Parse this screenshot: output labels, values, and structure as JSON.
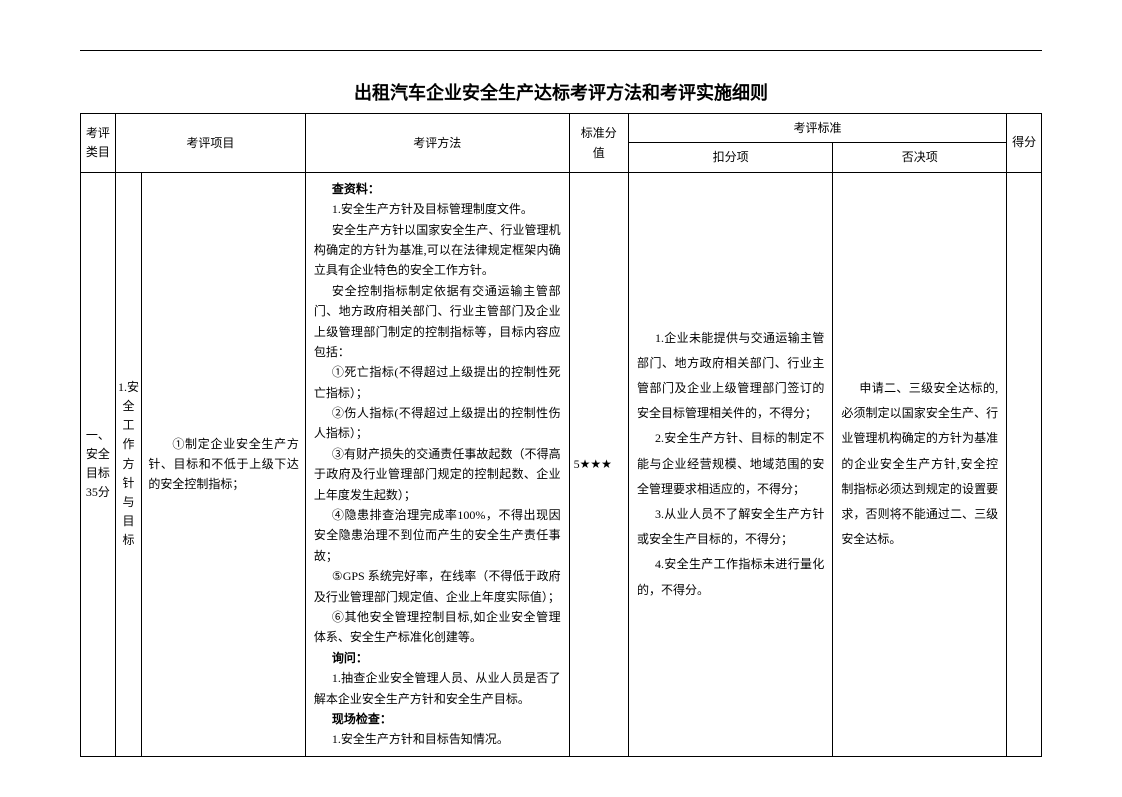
{
  "title": "出租汽车企业安全生产达标考评方法和考评实施细则",
  "headers": {
    "category": "考评类目",
    "project": "考评项目",
    "method": "考评方法",
    "std_score": "标准分值",
    "criteria": "考评标准",
    "deduct": "扣分项",
    "veto": "否决项",
    "points": "得分"
  },
  "row": {
    "category": "一、安全目标35分",
    "subproject": "1.安全工作方针与目标",
    "item": "①制定企业安全生产方针、目标和不低于上级下达的安全控制指标；",
    "method": {
      "h1": "查资料：",
      "p1": "1.安全生产方针及目标管理制度文件。",
      "p2": "安全生产方针以国家安全生产、行业管理机构确定的方针为基准,可以在法律规定框架内确立具有企业特色的安全工作方针。",
      "p3": "安全控制指标制定依据有交通运输主管部门、地方政府相关部门、行业主管部门及企业上级管理部门制定的控制指标等，目标内容应包括：",
      "p4": "①死亡指标(不得超过上级提出的控制性死亡指标）；",
      "p5": "②伤人指标(不得超过上级提出的控制性伤人指标）；",
      "p6": "③有财产损失的交通责任事故起数（不得高于政府及行业管理部门规定的控制起数、企业上年度发生起数）；",
      "p7": "④隐患排查治理完成率100%，不得出现因安全隐患治理不到位而产生的安全生产责任事故；",
      "p8": "⑤GPS 系统完好率，在线率（不得低于政府及行业管理部门规定值、企业上年度实际值）；",
      "p9": "⑥其他安全管理控制目标,如企业安全管理体系、安全生产标准化创建等。",
      "h2": "询问：",
      "p10": "1.抽查企业安全管理人员、从业人员是否了解本企业安全生产方针和安全生产目标。",
      "h3": "现场检查：",
      "p11": "1.安全生产方针和目标告知情况。"
    },
    "score": "5★★★",
    "deduct": {
      "p1": "1.企业未能提供与交通运输主管部门、地方政府相关部门、行业主管部门及企业上级管理部门签订的安全目标管理相关件的，不得分；",
      "p2": "2.安全生产方针、目标的制定不能与企业经营规模、地域范围的安全管理要求相适应的，不得分；",
      "p3": "3.从业人员不了解安全生产方针或安全生产目标的，不得分；",
      "p4": "4.安全生产工作指标未进行量化的，不得分。"
    },
    "veto": "申请二、三级安全达标的,必须制定以国家安全生产、行业管理机构确定的方针为基准的企业安全生产方针,安全控制指标必须达到规定的设置要求，否则将不能通过二、三级安全达标。"
  },
  "style": {
    "page_bg": "#ffffff",
    "border_color": "#000000",
    "title_fontsize": 18,
    "body_fontsize": 12,
    "line_height": 1.7
  }
}
